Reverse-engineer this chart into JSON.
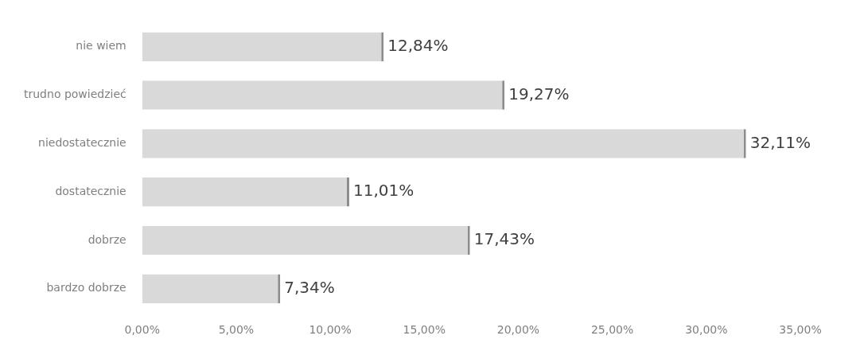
{
  "chart_data": {
    "type": "bar",
    "orientation": "horizontal",
    "categories": [
      "nie wiem",
      "trudno powiedzieć",
      "niedostatecznie",
      "dostatecznie",
      "dobrze",
      "bardzo dobrze"
    ],
    "values": [
      12.84,
      19.27,
      32.11,
      11.01,
      17.43,
      7.34
    ],
    "value_labels": [
      "12,84%",
      "19,27%",
      "32,11%",
      "11,01%",
      "17,43%",
      "7,34%"
    ],
    "color": "#d9d9d9",
    "xlim": [
      0,
      35
    ],
    "xticks": [
      {
        "value": 0,
        "label": "0,00%"
      },
      {
        "value": 5,
        "label": "5,00%"
      },
      {
        "value": 10,
        "label": "10,00%"
      },
      {
        "value": 15,
        "label": "15,00%"
      },
      {
        "value": 20,
        "label": "20,00%"
      },
      {
        "value": 25,
        "label": "25,00%"
      },
      {
        "value": 30,
        "label": "30,00%"
      },
      {
        "value": 35,
        "label": "35,00%"
      }
    ],
    "grid": false,
    "legend": false
  }
}
